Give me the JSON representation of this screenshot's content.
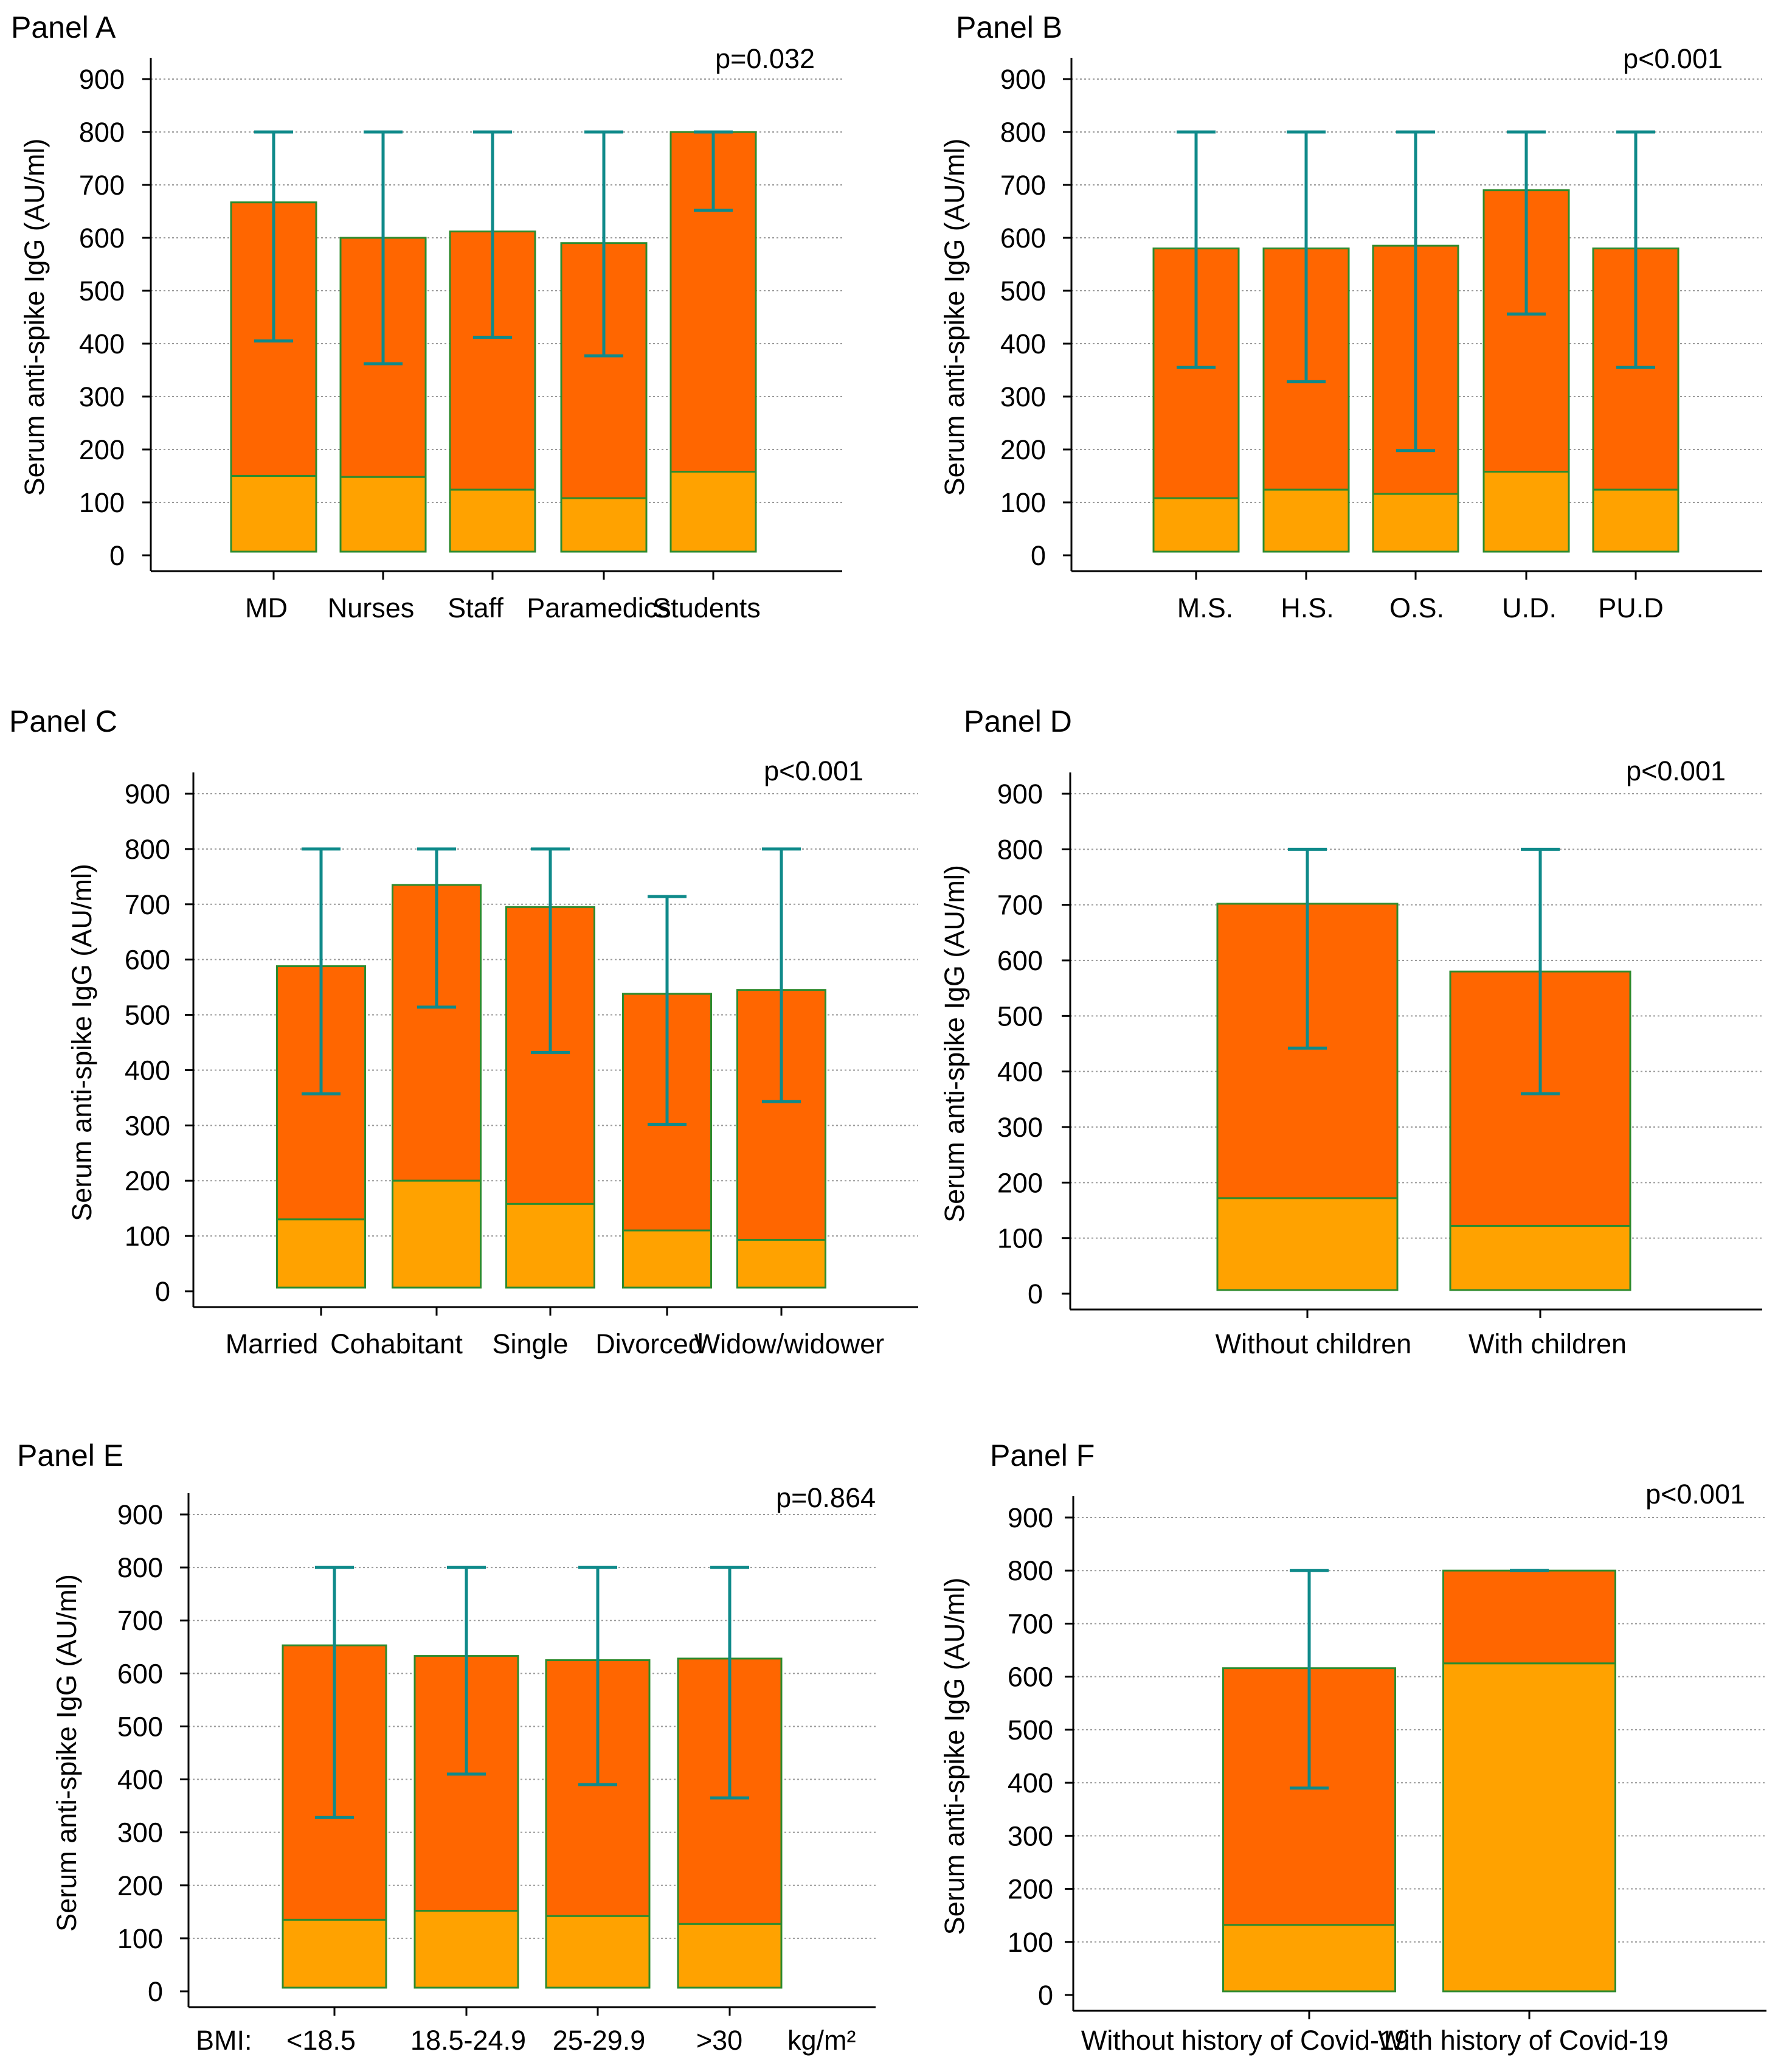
{
  "chart_data": [
    {
      "type": "bar",
      "panel": "Panel A",
      "p_value": "p=0.032",
      "ylabel": "Serum anti-spike IgG (AU/ml)",
      "ylim": [
        0,
        900
      ],
      "yticks": [
        "0",
        "100",
        "200",
        "300",
        "400",
        "500",
        "600",
        "700",
        "800",
        "900"
      ],
      "categories": [
        "MD",
        "Nurses",
        "Staff",
        "Paramedics",
        "Students"
      ],
      "series": [
        {
          "name": "lower",
          "values": [
            150,
            148,
            124,
            108,
            158
          ]
        },
        {
          "name": "upper",
          "values": [
            667,
            600,
            612,
            590,
            800
          ]
        }
      ],
      "error_low": [
        405,
        362,
        412,
        377,
        652
      ],
      "error_high": [
        800,
        800,
        800,
        800,
        800
      ]
    },
    {
      "type": "bar",
      "panel": "Panel B",
      "p_value": "p<0.001",
      "ylabel": "Serum anti-spike IgG (AU/ml)",
      "ylim": [
        0,
        900
      ],
      "yticks": [
        "0",
        "100",
        "200",
        "300",
        "400",
        "500",
        "600",
        "700",
        "800",
        "900"
      ],
      "categories": [
        "M.S.",
        "H.S.",
        "O.S.",
        "U.D.",
        "PU.D"
      ],
      "series": [
        {
          "name": "lower",
          "values": [
            108,
            124,
            116,
            158,
            124
          ]
        },
        {
          "name": "upper",
          "values": [
            580,
            580,
            585,
            690,
            580
          ]
        }
      ],
      "error_low": [
        355,
        328,
        198,
        456,
        355
      ],
      "error_high": [
        800,
        800,
        800,
        800,
        800
      ]
    },
    {
      "type": "bar",
      "panel": "Panel C",
      "p_value": "p<0.001",
      "ylabel": "Serum anti-spike IgG (AU/ml)",
      "ylim": [
        0,
        900
      ],
      "yticks": [
        "0",
        "100",
        "200",
        "300",
        "400",
        "500",
        "600",
        "700",
        "800",
        "900"
      ],
      "categories": [
        "Married",
        "Cohabitant",
        "Single",
        "Divorced",
        "Widow/widower"
      ],
      "series": [
        {
          "name": "lower",
          "values": [
            130,
            200,
            158,
            110,
            93
          ]
        },
        {
          "name": "upper",
          "values": [
            588,
            735,
            695,
            538,
            545
          ]
        }
      ],
      "error_low": [
        357,
        514,
        432,
        302,
        343
      ],
      "error_high": [
        800,
        800,
        800,
        714,
        800
      ]
    },
    {
      "type": "bar",
      "panel": "Panel D",
      "p_value": "p<0.001",
      "ylabel": "Serum anti-spike IgG (AU/ml)",
      "ylim": [
        0,
        900
      ],
      "yticks": [
        "0",
        "100",
        "200",
        "300",
        "400",
        "500",
        "600",
        "700",
        "800",
        "900"
      ],
      "categories": [
        "Without children",
        "With children"
      ],
      "series": [
        {
          "name": "lower",
          "values": [
            172,
            122
          ]
        },
        {
          "name": "upper",
          "values": [
            702,
            580
          ]
        }
      ],
      "error_low": [
        442,
        360
      ],
      "error_high": [
        800,
        800
      ]
    },
    {
      "type": "bar",
      "panel": "Panel E",
      "p_value": "p=0.864",
      "ylabel": "Serum anti-spike IgG (AU/ml)",
      "ylim": [
        0,
        900
      ],
      "yticks": [
        "0",
        "100",
        "200",
        "300",
        "400",
        "500",
        "600",
        "700",
        "800",
        "900"
      ],
      "categories": [
        "<18.5",
        "18.5-24.9",
        "25-29.9",
        ">30"
      ],
      "x_prefix": "BMI:",
      "x_suffix": "kg/m²",
      "series": [
        {
          "name": "lower",
          "values": [
            135,
            152,
            142,
            127
          ]
        },
        {
          "name": "upper",
          "values": [
            653,
            633,
            625,
            628
          ]
        }
      ],
      "error_low": [
        328,
        410,
        390,
        365
      ],
      "error_high": [
        800,
        800,
        800,
        800
      ]
    },
    {
      "type": "bar",
      "panel": "Panel F",
      "p_value": "p<0.001",
      "ylabel": "Serum anti-spike IgG (AU/ml)",
      "ylim": [
        0,
        900
      ],
      "yticks": [
        "0",
        "100",
        "200",
        "300",
        "400",
        "500",
        "600",
        "700",
        "800",
        "900"
      ],
      "categories": [
        "Without history of Covid-19",
        "With history of Covid-19"
      ],
      "series": [
        {
          "name": "lower",
          "values": [
            132,
            625
          ]
        },
        {
          "name": "upper",
          "values": [
            616,
            800
          ]
        }
      ],
      "error_low": [
        390,
        800
      ],
      "error_high": [
        800,
        800
      ]
    }
  ]
}
